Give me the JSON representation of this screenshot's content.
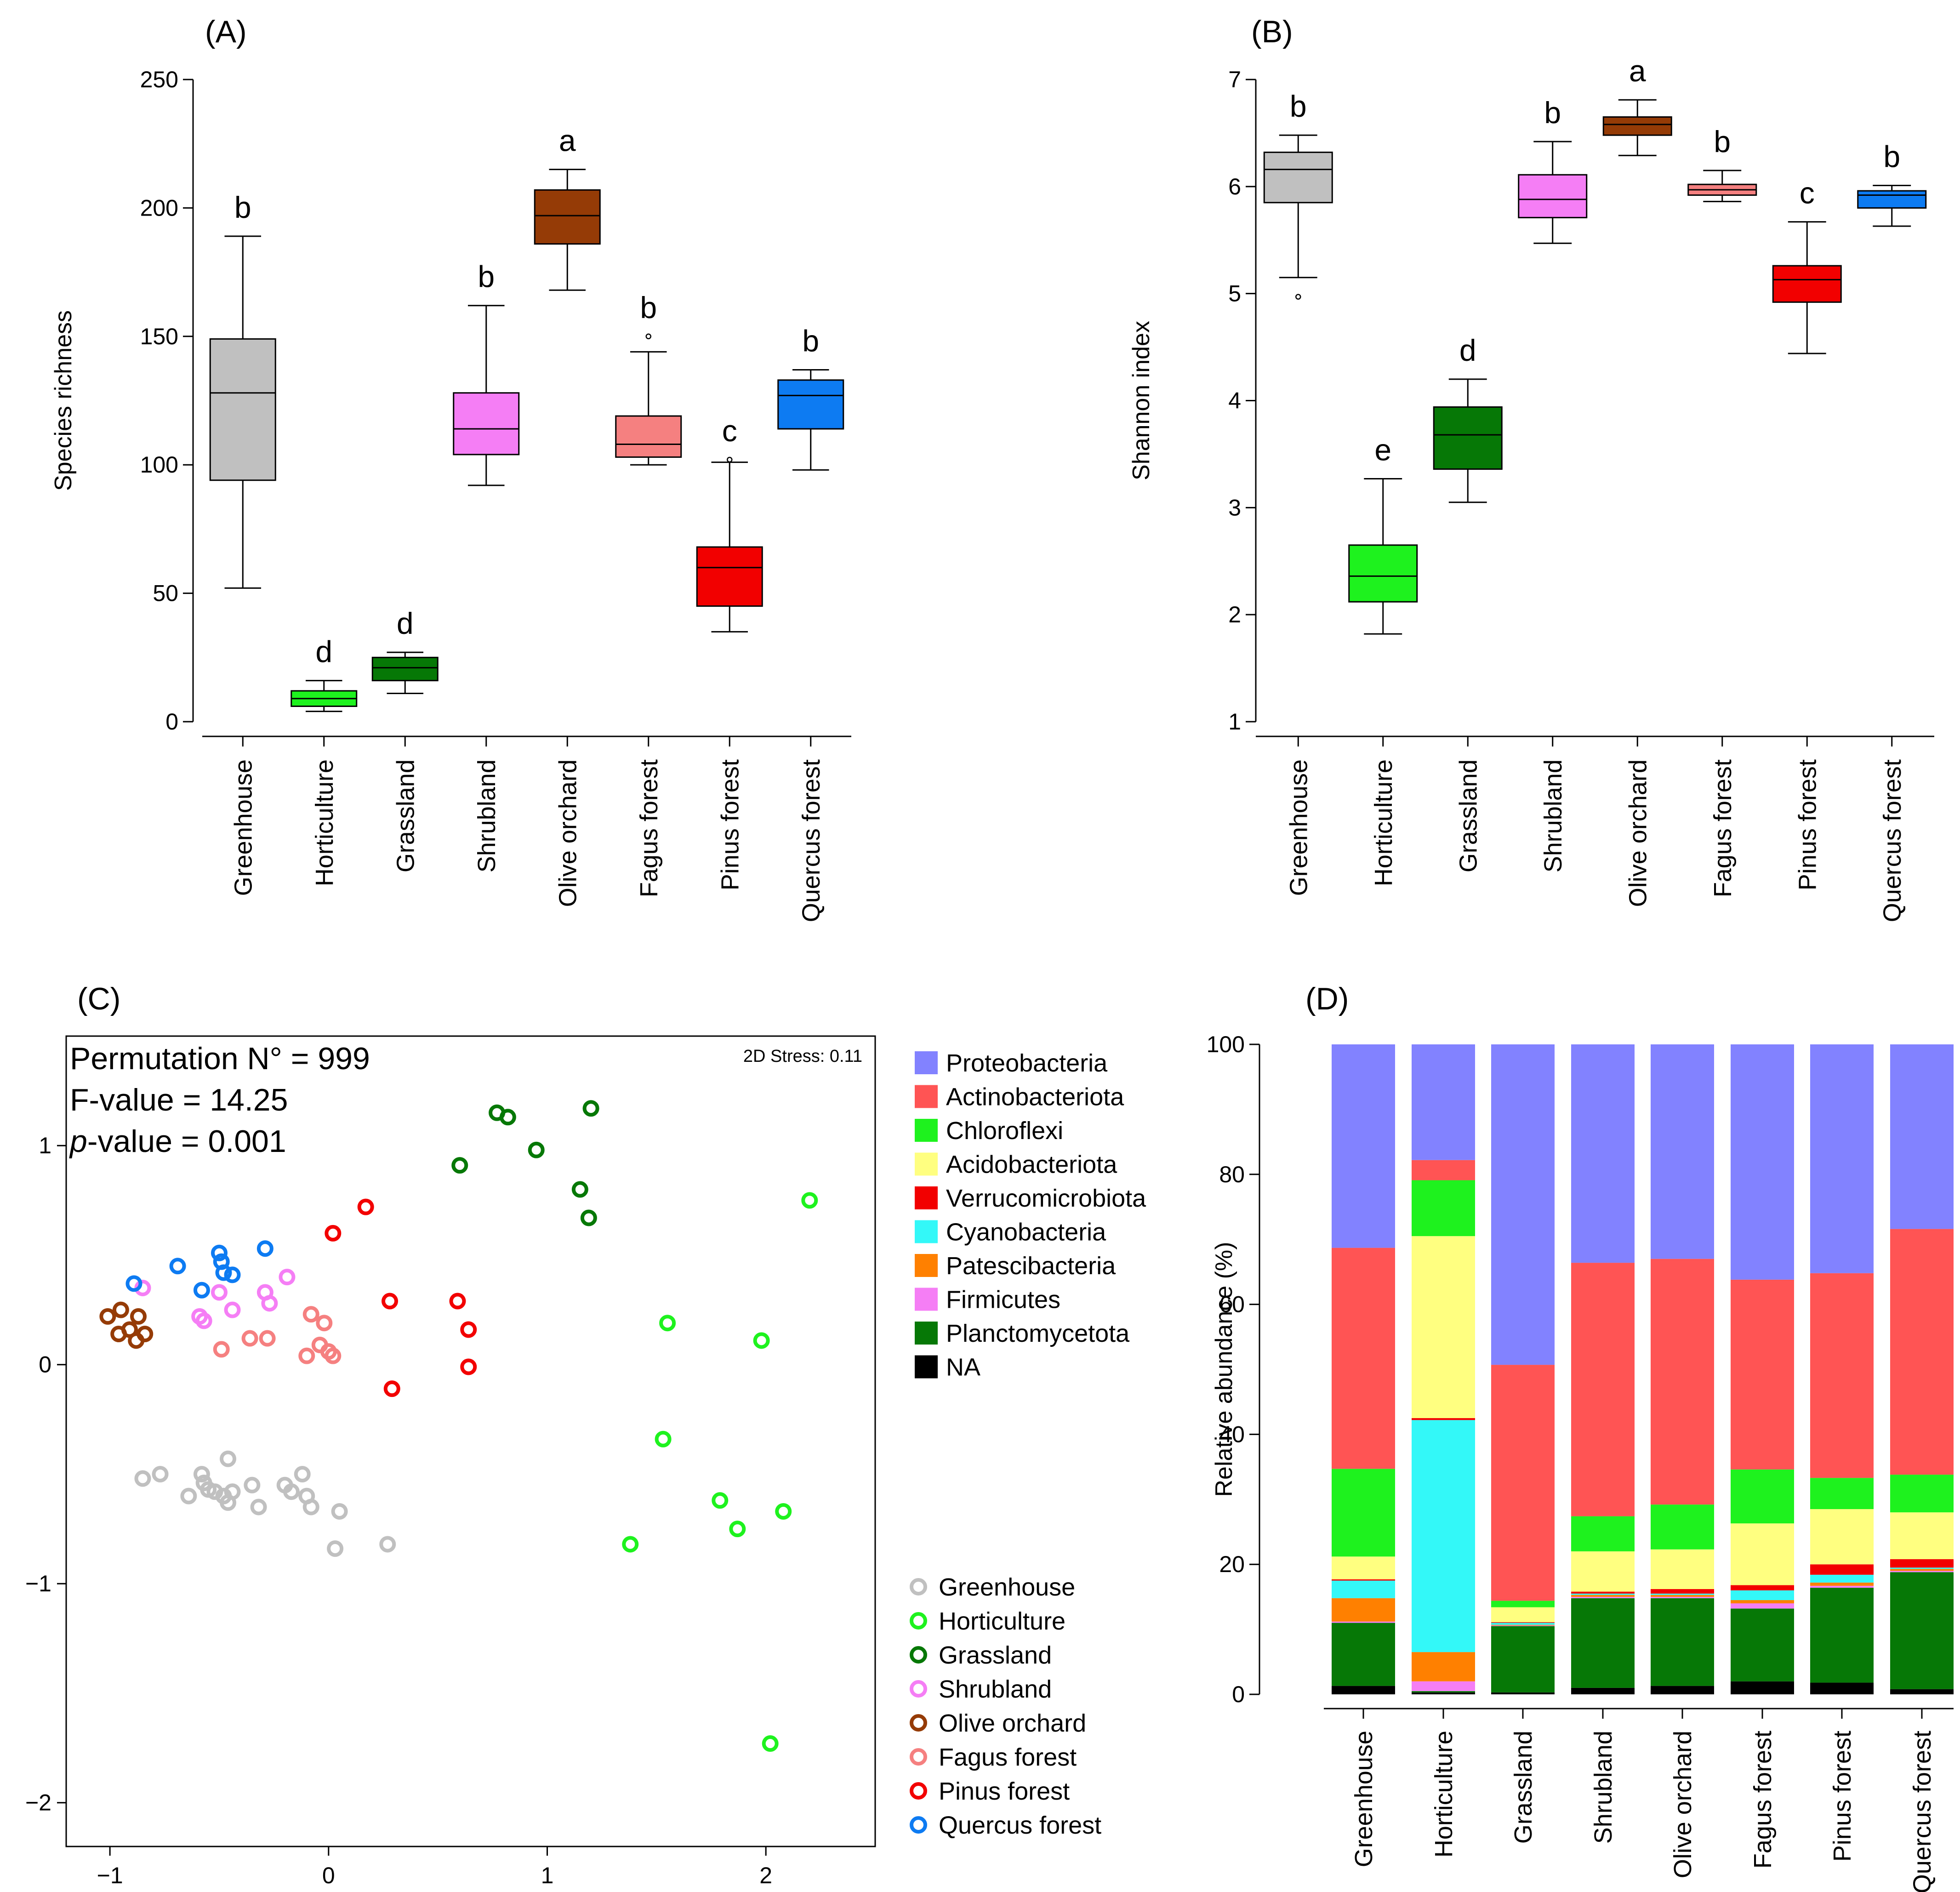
{
  "panels": {
    "A": "(A)",
    "B": "(B)",
    "C": "(C)",
    "D": "(D)"
  },
  "chart_data": [
    {
      "id": "A",
      "type": "box",
      "title": "(A)",
      "ylabel": "Species richness",
      "ylim": [
        0,
        250
      ],
      "yticks": [
        0,
        50,
        100,
        150,
        200,
        250
      ],
      "categories": [
        "Greenhouse",
        "Horticulture",
        "Grassland",
        "Shrubland",
        "Olive orchard",
        "Fagus forest",
        "Pinus forest",
        "Quercus forest"
      ],
      "colors": [
        "#c0c0c0",
        "#1ef21e",
        "#067806",
        "#f57ef5",
        "#953b06",
        "#f58080",
        "#f20000",
        "#0d7bf2"
      ],
      "letters": [
        "b",
        "d",
        "d",
        "b",
        "a",
        "b",
        "c",
        "b"
      ],
      "boxes": [
        {
          "wlo": 52,
          "q1": 94,
          "med": 128,
          "q3": 149,
          "whi": 189,
          "outliers": []
        },
        {
          "wlo": 4,
          "q1": 6,
          "med": 9,
          "q3": 12,
          "whi": 16,
          "outliers": []
        },
        {
          "wlo": 11,
          "q1": 16,
          "med": 21,
          "q3": 25,
          "whi": 27,
          "outliers": []
        },
        {
          "wlo": 92,
          "q1": 104,
          "med": 114,
          "q3": 128,
          "whi": 162,
          "outliers": []
        },
        {
          "wlo": 168,
          "q1": 186,
          "med": 197,
          "q3": 207,
          "whi": 215,
          "outliers": []
        },
        {
          "wlo": 100,
          "q1": 103,
          "med": 108,
          "q3": 119,
          "whi": 144,
          "outliers": [
            150
          ]
        },
        {
          "wlo": 35,
          "q1": 45,
          "med": 60,
          "q3": 68,
          "whi": 101,
          "outliers": [
            102
          ]
        },
        {
          "wlo": 98,
          "q1": 114,
          "med": 127,
          "q3": 133,
          "whi": 137,
          "outliers": []
        }
      ]
    },
    {
      "id": "B",
      "type": "box",
      "title": "(B)",
      "ylabel": "Shannon index",
      "ylim": [
        1,
        7
      ],
      "yticks": [
        1,
        2,
        3,
        4,
        5,
        6,
        7
      ],
      "categories": [
        "Greenhouse",
        "Horticulture",
        "Grassland",
        "Shrubland",
        "Olive orchard",
        "Fagus forest",
        "Pinus forest",
        "Quercus forest"
      ],
      "colors": [
        "#c0c0c0",
        "#1ef21e",
        "#067806",
        "#f57ef5",
        "#953b06",
        "#f58080",
        "#f20000",
        "#0d7bf2"
      ],
      "letters": [
        "b",
        "e",
        "d",
        "b",
        "a",
        "b",
        "c",
        "b"
      ],
      "boxes": [
        {
          "wlo": 5.15,
          "q1": 5.85,
          "med": 6.16,
          "q3": 6.32,
          "whi": 6.48,
          "outliers": [
            4.97
          ]
        },
        {
          "wlo": 1.82,
          "q1": 2.12,
          "med": 2.36,
          "q3": 2.65,
          "whi": 3.27,
          "outliers": []
        },
        {
          "wlo": 3.05,
          "q1": 3.36,
          "med": 3.68,
          "q3": 3.94,
          "whi": 4.2,
          "outliers": []
        },
        {
          "wlo": 5.47,
          "q1": 5.71,
          "med": 5.88,
          "q3": 6.11,
          "whi": 6.42,
          "outliers": []
        },
        {
          "wlo": 6.29,
          "q1": 6.48,
          "med": 6.58,
          "q3": 6.65,
          "whi": 6.81,
          "outliers": []
        },
        {
          "wlo": 5.86,
          "q1": 5.92,
          "med": 5.97,
          "q3": 6.02,
          "whi": 6.15,
          "outliers": []
        },
        {
          "wlo": 4.44,
          "q1": 4.92,
          "med": 5.13,
          "q3": 5.26,
          "whi": 5.67,
          "outliers": []
        },
        {
          "wlo": 5.63,
          "q1": 5.8,
          "med": 5.92,
          "q3": 5.96,
          "whi": 6.01,
          "outliers": []
        }
      ]
    },
    {
      "id": "C",
      "type": "scatter",
      "title": "(C)",
      "xlim": [
        -1.2,
        2.5
      ],
      "ylim": [
        -2.2,
        1.5
      ],
      "xticks": [
        -1,
        0,
        1,
        2
      ],
      "yticks": [
        -2,
        -1,
        0,
        1
      ],
      "xtick_labels": [
        "−1",
        "0",
        "1",
        "2"
      ],
      "ytick_labels": [
        "−2",
        "−1",
        "0",
        "1"
      ],
      "stress": "2D Stress: 0.11",
      "stats": {
        "permutation": "Permutation N° = 999",
        "f_prefix": "F-value = 14.25",
        "p_italic": "p",
        "p_suffix": "-value = 0.001"
      },
      "series": [
        {
          "name": "Greenhouse",
          "color": "#c0c0c0",
          "points": [
            [
              -0.85,
              -0.52
            ],
            [
              -0.77,
              -0.5
            ],
            [
              -0.64,
              -0.6
            ],
            [
              -0.58,
              -0.5
            ],
            [
              -0.57,
              -0.54
            ],
            [
              -0.55,
              -0.57
            ],
            [
              -0.52,
              -0.58
            ],
            [
              -0.48,
              -0.6
            ],
            [
              -0.46,
              -0.43
            ],
            [
              -0.46,
              -0.63
            ],
            [
              -0.44,
              -0.58
            ],
            [
              -0.35,
              -0.55
            ],
            [
              -0.32,
              -0.65
            ],
            [
              -0.2,
              -0.55
            ],
            [
              -0.17,
              -0.58
            ],
            [
              -0.12,
              -0.5
            ],
            [
              -0.1,
              -0.6
            ],
            [
              -0.08,
              -0.65
            ],
            [
              0.05,
              -0.67
            ],
            [
              0.03,
              -0.84
            ],
            [
              0.27,
              -0.82
            ]
          ]
        },
        {
          "name": "Horticulture",
          "color": "#1ef21e",
          "points": [
            [
              2.2,
              0.75
            ],
            [
              1.55,
              0.19
            ],
            [
              1.98,
              0.11
            ],
            [
              1.53,
              -0.34
            ],
            [
              1.79,
              -0.62
            ],
            [
              1.87,
              -0.75
            ],
            [
              2.08,
              -0.67
            ],
            [
              1.38,
              -0.82
            ],
            [
              2.02,
              -1.73
            ]
          ]
        },
        {
          "name": "Grassland",
          "color": "#067806",
          "points": [
            [
              0.77,
              1.15
            ],
            [
              0.82,
              1.13
            ],
            [
              1.2,
              1.17
            ],
            [
              0.95,
              0.98
            ],
            [
              0.6,
              0.91
            ],
            [
              1.15,
              0.8
            ],
            [
              1.19,
              0.67
            ]
          ]
        },
        {
          "name": "Shrubland",
          "color": "#f57ef5",
          "points": [
            [
              -0.85,
              0.35
            ],
            [
              -0.19,
              0.4
            ],
            [
              -0.5,
              0.33
            ],
            [
              -0.29,
              0.33
            ],
            [
              -0.27,
              0.28
            ],
            [
              -0.44,
              0.25
            ],
            [
              -0.59,
              0.22
            ],
            [
              -0.57,
              0.2
            ]
          ]
        },
        {
          "name": "Olive orchard",
          "color": "#953b06",
          "points": [
            [
              -1.01,
              0.22
            ],
            [
              -0.95,
              0.25
            ],
            [
              -0.87,
              0.22
            ],
            [
              -0.91,
              0.16
            ],
            [
              -0.96,
              0.14
            ],
            [
              -0.84,
              0.14
            ],
            [
              -0.88,
              0.11
            ]
          ]
        },
        {
          "name": "Fagus forest",
          "color": "#f58080",
          "points": [
            [
              -0.08,
              0.23
            ],
            [
              -0.02,
              0.19
            ],
            [
              -0.04,
              0.09
            ],
            [
              0.0,
              0.06
            ],
            [
              0.02,
              0.04
            ],
            [
              -0.1,
              0.04
            ],
            [
              -0.36,
              0.12
            ],
            [
              -0.28,
              0.12
            ],
            [
              -0.49,
              0.07
            ]
          ]
        },
        {
          "name": "Pinus forest",
          "color": "#f20000",
          "points": [
            [
              0.17,
              0.72
            ],
            [
              0.02,
              0.6
            ],
            [
              0.28,
              0.29
            ],
            [
              0.59,
              0.29
            ],
            [
              0.64,
              0.16
            ],
            [
              0.64,
              -0.01
            ],
            [
              0.29,
              -0.11
            ]
          ]
        },
        {
          "name": "Quercus forest",
          "color": "#0d7bf2",
          "points": [
            [
              -0.29,
              0.53
            ],
            [
              -0.5,
              0.51
            ],
            [
              -0.49,
              0.47
            ],
            [
              -0.69,
              0.45
            ],
            [
              -0.48,
              0.42
            ],
            [
              -0.44,
              0.41
            ],
            [
              -0.89,
              0.37
            ],
            [
              -0.58,
              0.34
            ]
          ]
        }
      ]
    },
    {
      "id": "D",
      "type": "stacked-bar",
      "title": "(D)",
      "ylabel": "Relative abundance (%)",
      "ylim": [
        0,
        100
      ],
      "yticks": [
        0,
        20,
        40,
        60,
        80,
        100
      ],
      "categories": [
        "Greenhouse",
        "Horticulture",
        "Grassland",
        "Shrubland",
        "Olive orchard",
        "Fagus forest",
        "Pinus forest",
        "Quercus forest"
      ],
      "series": [
        {
          "name": "NA",
          "color": "#000000",
          "values": [
            1.3,
            0.3,
            0.3,
            1.0,
            1.3,
            2.0,
            1.8,
            0.8
          ]
        },
        {
          "name": "Planctomycetota",
          "color": "#067806",
          "values": [
            9.7,
            0.2,
            10.2,
            13.8,
            13.5,
            11.2,
            14.6,
            18.0
          ]
        },
        {
          "name": "Firmicutes",
          "color": "#f57ef5",
          "values": [
            0.2,
            1.5,
            0.1,
            0.2,
            0.2,
            0.8,
            0.3,
            0.2
          ]
        },
        {
          "name": "Patescibacteria",
          "color": "#ff8000",
          "values": [
            3.6,
            4.5,
            0.1,
            0.3,
            0.3,
            0.5,
            0.5,
            0.3
          ]
        },
        {
          "name": "Cyanobacteria",
          "color": "#33f8f8",
          "values": [
            2.7,
            35.7,
            0.3,
            0.2,
            0.2,
            1.5,
            1.2,
            0.2
          ]
        },
        {
          "name": "Verrucomicrobiota",
          "color": "#f20000",
          "values": [
            0.2,
            0.3,
            0.1,
            0.3,
            0.7,
            0.8,
            1.6,
            1.3
          ]
        },
        {
          "name": "Acidobacteriota",
          "color": "#ffff80",
          "values": [
            3.5,
            28.0,
            2.3,
            6.2,
            6.1,
            9.5,
            8.5,
            7.2
          ]
        },
        {
          "name": "Chloroflexi",
          "color": "#1ef21e",
          "values": [
            13.5,
            8.6,
            1.0,
            5.4,
            6.9,
            8.3,
            4.8,
            5.8
          ]
        },
        {
          "name": "Actinobacteriota",
          "color": "#ff5454",
          "values": [
            34.0,
            3.1,
            36.3,
            39.0,
            37.8,
            29.2,
            31.5,
            37.8
          ]
        },
        {
          "name": "Proteobacteria",
          "color": "#8282ff",
          "values": [
            31.3,
            17.8,
            49.3,
            33.6,
            33.0,
            36.2,
            35.2,
            28.4
          ]
        }
      ]
    }
  ],
  "legend_D": [
    "Proteobacteria",
    "Actinobacteriota",
    "Chloroflexi",
    "Acidobacteriota",
    "Verrucomicrobiota",
    "Cyanobacteria",
    "Patescibacteria",
    "Firmicutes",
    "Planctomycetota",
    "NA"
  ],
  "legend_D_colors": [
    "#8282ff",
    "#ff5454",
    "#1ef21e",
    "#ffff80",
    "#f20000",
    "#33f8f8",
    "#ff8000",
    "#f57ef5",
    "#067806",
    "#000000"
  ],
  "legend_C": [
    "Greenhouse",
    "Horticulture",
    "Grassland",
    "Shrubland",
    "Olive orchard",
    "Fagus forest",
    "Pinus forest",
    "Quercus forest"
  ],
  "legend_C_colors": [
    "#c0c0c0",
    "#1ef21e",
    "#067806",
    "#f57ef5",
    "#953b06",
    "#f58080",
    "#f20000",
    "#0d7bf2"
  ]
}
